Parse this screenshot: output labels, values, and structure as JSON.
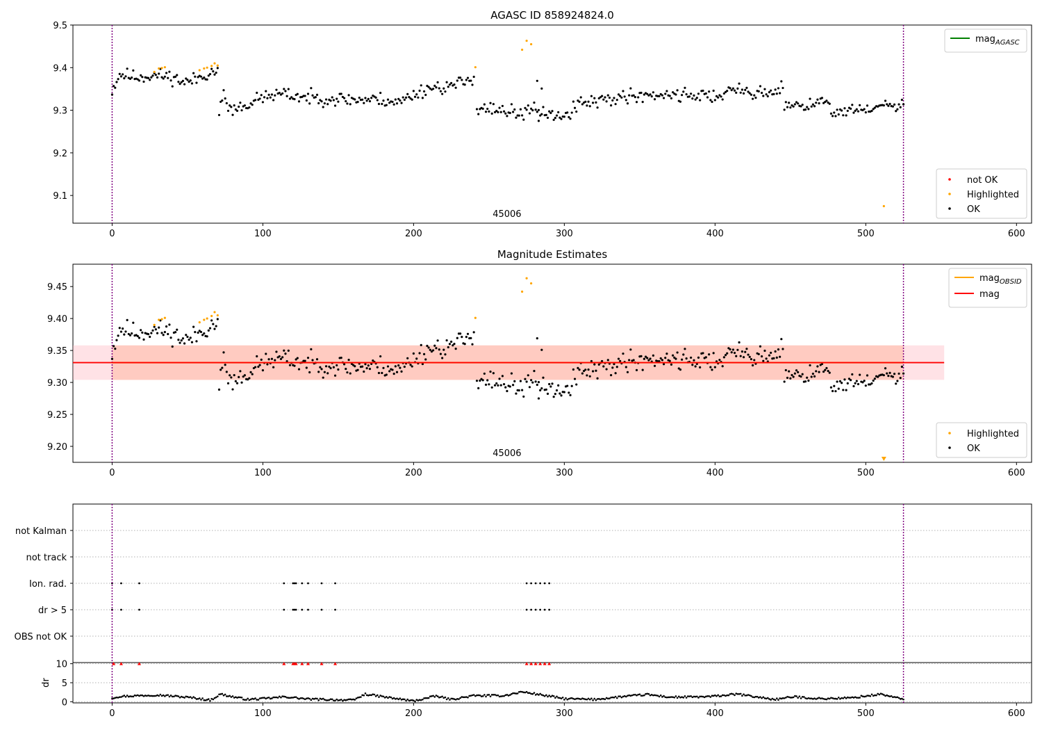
{
  "chart_data": [
    {
      "type": "scatter",
      "title": "AGASC ID 858924824.0",
      "xlim": [
        -26,
        610
      ],
      "ylim": [
        9.035,
        9.5
      ],
      "xticks": [
        0,
        100,
        200,
        300,
        400,
        500,
        600
      ],
      "yticks": [
        9.1,
        9.2,
        9.3,
        9.4,
        9.5
      ],
      "ytick_labels": [
        "9.1",
        "9.2",
        "9.3",
        "9.4",
        "9.5"
      ],
      "vlines": [
        0,
        525
      ],
      "obsid_label": "45006",
      "obsid_label_x": 262,
      "legend_top": {
        "position": "top-right",
        "entries": [
          {
            "label_main": "mag",
            "label_sub": "AGASC",
            "color": "#008000"
          }
        ]
      },
      "legend_bottom": {
        "position": "bottom-right",
        "entries": [
          {
            "label": "not OK",
            "color": "#ff0000"
          },
          {
            "label": "Highlighted",
            "color": "#ffa500"
          },
          {
            "label": "OK",
            "color": "#000000"
          }
        ]
      },
      "highlighted_points": [
        [
          28,
          9.39
        ],
        [
          31,
          9.398
        ],
        [
          33,
          9.399
        ],
        [
          35,
          9.401
        ],
        [
          58,
          9.394
        ],
        [
          61,
          9.398
        ],
        [
          63,
          9.4
        ],
        [
          66,
          9.404
        ],
        [
          68,
          9.41
        ],
        [
          70,
          9.405
        ],
        [
          241,
          9.401
        ],
        [
          272,
          9.442
        ],
        [
          275,
          9.463
        ],
        [
          278,
          9.455
        ],
        [
          512,
          9.075
        ]
      ],
      "ok_segments": [
        {
          "x_from": 0,
          "x_to": 70,
          "y_points": [
            [
              0,
              9.347
            ],
            [
              5,
              9.385
            ],
            [
              15,
              9.378
            ],
            [
              30,
              9.382
            ],
            [
              40,
              9.378
            ],
            [
              48,
              9.365
            ],
            [
              55,
              9.372
            ],
            [
              62,
              9.385
            ],
            [
              70,
              9.393
            ]
          ],
          "noise": 0.008,
          "seed": 11
        },
        {
          "x_from": 71,
          "x_to": 240,
          "y_points": [
            [
              71,
              9.294
            ],
            [
              74,
              9.345
            ],
            [
              78,
              9.3
            ],
            [
              90,
              9.315
            ],
            [
              100,
              9.33
            ],
            [
              110,
              9.338
            ],
            [
              130,
              9.33
            ],
            [
              160,
              9.325
            ],
            [
              180,
              9.325
            ],
            [
              190,
              9.318
            ],
            [
              200,
              9.337
            ],
            [
              210,
              9.353
            ],
            [
              225,
              9.356
            ],
            [
              235,
              9.368
            ],
            [
              240,
              9.38
            ]
          ],
          "noise": 0.008,
          "seed": 23
        },
        {
          "x_from": 242,
          "x_to": 305,
          "y_points": [
            [
              242,
              9.31
            ],
            [
              250,
              9.303
            ],
            [
              260,
              9.3
            ],
            [
              270,
              9.292
            ],
            [
              280,
              9.3
            ],
            [
              290,
              9.293
            ],
            [
              298,
              9.282
            ],
            [
              305,
              9.296
            ]
          ],
          "noise": 0.008,
          "seed": 37
        },
        {
          "x_from": 306,
          "x_to": 445,
          "y_points": [
            [
              306,
              9.31
            ],
            [
              320,
              9.32
            ],
            [
              340,
              9.333
            ],
            [
              360,
              9.337
            ],
            [
              380,
              9.337
            ],
            [
              400,
              9.333
            ],
            [
              415,
              9.348
            ],
            [
              425,
              9.343
            ],
            [
              435,
              9.338
            ],
            [
              445,
              9.355
            ]
          ],
          "noise": 0.008,
          "seed": 41
        },
        {
          "x_from": 446,
          "x_to": 476,
          "y_points": [
            [
              446,
              9.318
            ],
            [
              460,
              9.315
            ],
            [
              476,
              9.32
            ]
          ],
          "noise": 0.008,
          "seed": 53
        },
        {
          "x_from": 477,
          "x_to": 525,
          "y_points": [
            [
              477,
              9.29
            ],
            [
              490,
              9.3
            ],
            [
              500,
              9.298
            ],
            [
              510,
              9.31
            ],
            [
              525,
              9.31
            ]
          ],
          "noise": 0.007,
          "seed": 61
        }
      ],
      "ok_extra_points": [
        [
          282,
          9.369
        ],
        [
          285,
          9.351
        ],
        [
          283,
          9.275
        ]
      ]
    },
    {
      "type": "scatter",
      "title": "Magnitude Estimates",
      "xlim": [
        -26,
        610
      ],
      "ylim": [
        9.175,
        9.485
      ],
      "xticks": [
        0,
        100,
        200,
        300,
        400,
        500,
        600
      ],
      "yticks": [
        9.2,
        9.25,
        9.3,
        9.35,
        9.4,
        9.45
      ],
      "ytick_labels": [
        "9.20",
        "9.25",
        "9.30",
        "9.35",
        "9.40",
        "9.45"
      ],
      "vlines": [
        0,
        525
      ],
      "obsid_label": "45006",
      "obsid_label_x": 262,
      "mag_line": {
        "value": 9.331,
        "x_from": -26,
        "x_to": 552,
        "color": "#ff0000",
        "band": [
          9.304,
          9.358
        ],
        "band_color": "#ffb6c1"
      },
      "mag_obsid_line": {
        "value": 9.331,
        "x_from": 0,
        "x_to": 525,
        "color": "#ffa500",
        "band": [
          9.304,
          9.358
        ],
        "band_color": "#ffa07a"
      },
      "legend_top": {
        "position": "top-right",
        "entries": [
          {
            "label_main": "mag",
            "label_sub": "OBSID",
            "color": "#ffa500"
          },
          {
            "label_main": "mag",
            "label_sub": "",
            "color": "#ff0000"
          }
        ]
      },
      "legend_bottom": {
        "position": "bottom-right",
        "entries": [
          {
            "label": "Highlighted",
            "color": "#ffa500"
          },
          {
            "label": "OK",
            "color": "#000000"
          }
        ]
      },
      "offscale_marker": {
        "x": 512,
        "direction": "down",
        "color": "#ffa500"
      },
      "highlighted_points": [
        [
          28,
          9.39
        ],
        [
          31,
          9.398
        ],
        [
          33,
          9.399
        ],
        [
          35,
          9.401
        ],
        [
          58,
          9.394
        ],
        [
          61,
          9.398
        ],
        [
          63,
          9.4
        ],
        [
          66,
          9.404
        ],
        [
          68,
          9.41
        ],
        [
          70,
          9.405
        ],
        [
          241,
          9.401
        ],
        [
          272,
          9.442
        ],
        [
          275,
          9.463
        ],
        [
          278,
          9.455
        ]
      ],
      "use_ok_from_panel": 0
    },
    {
      "type": "scatter",
      "title": "",
      "xlim": [
        -26,
        610
      ],
      "categories": [
        "not Kalman",
        "not track",
        "Ion. rad.",
        "dr > 5",
        "OBS not OK"
      ],
      "flag_points": {
        "Ion. rad.": [
          0,
          6,
          18,
          114,
          120,
          121,
          122,
          126,
          130,
          139,
          148,
          275,
          278,
          281,
          284,
          287,
          290
        ],
        "dr > 5": [
          0,
          6,
          18,
          114,
          120,
          121,
          122,
          126,
          130,
          139,
          148,
          275,
          278,
          281,
          284,
          287,
          290
        ]
      },
      "vlines": [
        0,
        525
      ]
    },
    {
      "type": "scatter",
      "title": "",
      "xlim": [
        -26,
        610
      ],
      "ylim": [
        -0.3,
        10.3
      ],
      "xticks": [
        0,
        100,
        200,
        300,
        400,
        500,
        600
      ],
      "yticks": [
        0,
        5,
        10
      ],
      "ytick_labels": [
        "0",
        "5",
        "10"
      ],
      "ylabel": "dr",
      "vlines": [
        0,
        525
      ],
      "capped_points": [
        1,
        6,
        18,
        114,
        120,
        121,
        122,
        126,
        130,
        139,
        148,
        275,
        278,
        281,
        284,
        287,
        290
      ],
      "capped_value": 10,
      "capped_color": "#ff0000",
      "dr_profile": [
        [
          0,
          1.0
        ],
        [
          5,
          1.4
        ],
        [
          30,
          1.8
        ],
        [
          55,
          1.0
        ],
        [
          65,
          0.4
        ],
        [
          72,
          2.0
        ],
        [
          80,
          1.3
        ],
        [
          90,
          0.6
        ],
        [
          100,
          0.8
        ],
        [
          115,
          1.3
        ],
        [
          130,
          0.7
        ],
        [
          160,
          0.4
        ],
        [
          168,
          2.0
        ],
        [
          185,
          1.0
        ],
        [
          200,
          0.2
        ],
        [
          215,
          1.5
        ],
        [
          225,
          0.6
        ],
        [
          240,
          1.6
        ],
        [
          260,
          1.6
        ],
        [
          272,
          2.6
        ],
        [
          285,
          1.8
        ],
        [
          300,
          0.8
        ],
        [
          320,
          0.6
        ],
        [
          340,
          1.4
        ],
        [
          355,
          1.9
        ],
        [
          370,
          1.2
        ],
        [
          395,
          1.3
        ],
        [
          415,
          2.0
        ],
        [
          425,
          1.4
        ],
        [
          440,
          0.6
        ],
        [
          452,
          1.3
        ],
        [
          470,
          0.8
        ],
        [
          490,
          1.0
        ],
        [
          510,
          2.0
        ],
        [
          525,
          0.6
        ]
      ]
    }
  ]
}
